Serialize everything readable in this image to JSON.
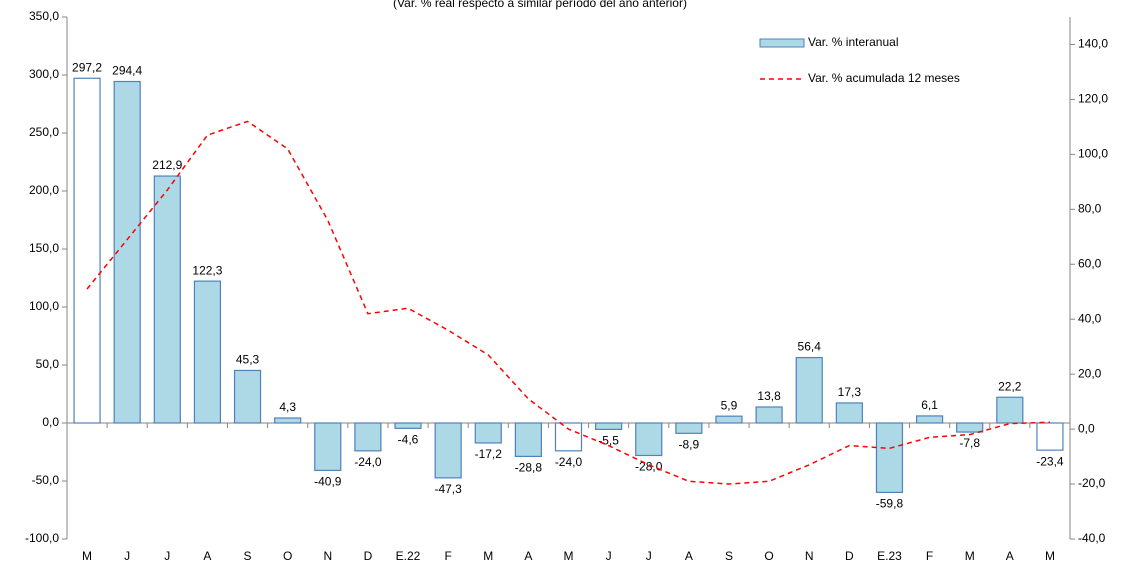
{
  "chart_data": {
    "type": "bar",
    "subtitle": "(Var. % real respecto a similar período del año anterior)",
    "categories": [
      "M",
      "J",
      "J",
      "A",
      "S",
      "O",
      "N",
      "D",
      "E.22",
      "F",
      "M",
      "A",
      "M",
      "J",
      "J",
      "A",
      "S",
      "O",
      "N",
      "D",
      "E.23",
      "F",
      "M",
      "A",
      "M"
    ],
    "series": [
      {
        "name": "Var. % interanual",
        "type": "bar",
        "color": "#add8e6",
        "edge": "#4f81bd",
        "point_colors": [
          "#ffffff",
          "#add8e6",
          "#add8e6",
          "#add8e6",
          "#add8e6",
          "#add8e6",
          "#add8e6",
          "#add8e6",
          "#add8e6",
          "#add8e6",
          "#add8e6",
          "#add8e6",
          "#ffffff",
          "#add8e6",
          "#add8e6",
          "#add8e6",
          "#add8e6",
          "#add8e6",
          "#add8e6",
          "#add8e6",
          "#add8e6",
          "#add8e6",
          "#add8e6",
          "#add8e6",
          "#ffffff"
        ],
        "values": [
          297.2,
          294.4,
          212.9,
          122.3,
          45.3,
          4.3,
          -40.9,
          -24.0,
          -4.6,
          -47.3,
          -17.2,
          -28.8,
          -24.0,
          -5.5,
          -28.0,
          -8.9,
          5.9,
          13.8,
          56.4,
          17.3,
          -59.8,
          6.1,
          -7.8,
          22.2,
          -23.4
        ],
        "value_labels": [
          "297,2",
          "294,4",
          "212,9",
          "122,3",
          "45,3",
          "4,3",
          "-40,9",
          "-24,0",
          "-4,6",
          "-47,3",
          "-17,2",
          "-28,8",
          "-24,0",
          "-5,5",
          "-28,0",
          "-8,9",
          "5,9",
          "13,8",
          "56,4",
          "17,3",
          "-59,8",
          "6,1",
          "-7,8",
          "22,2",
          "-23,4"
        ]
      },
      {
        "name": "Var. % acumulada 12 meses",
        "type": "line",
        "axis": "y2",
        "color": "#ff0000",
        "dashed": true,
        "values": [
          51,
          69,
          87,
          107,
          112,
          102,
          76,
          42,
          44,
          36,
          27,
          11,
          0,
          -6,
          -13,
          -19,
          -20,
          -19,
          -13,
          -6,
          -7,
          -3,
          -2,
          2,
          2.5
        ]
      }
    ],
    "ylim": [
      -100,
      350
    ],
    "yticks": [
      {
        "value": -100,
        "label": "-100,0"
      },
      {
        "value": -50,
        "label": "-50,0"
      },
      {
        "value": 0,
        "label": "0,0"
      },
      {
        "value": 50,
        "label": "50,0"
      },
      {
        "value": 100,
        "label": "100,0"
      },
      {
        "value": 150,
        "label": "150,0"
      },
      {
        "value": 200,
        "label": "200,0"
      },
      {
        "value": 250,
        "label": "250,0"
      },
      {
        "value": 300,
        "label": "300,0"
      },
      {
        "value": 350,
        "label": "350,0"
      }
    ],
    "y2lim": [
      -40,
      150
    ],
    "y2ticks": [
      {
        "value": -40,
        "label": "-40,0"
      },
      {
        "value": -20,
        "label": "-20,0"
      },
      {
        "value": 0,
        "label": "0,0"
      },
      {
        "value": 20,
        "label": "20,0"
      },
      {
        "value": 40,
        "label": "40,0"
      },
      {
        "value": 60,
        "label": "60,0"
      },
      {
        "value": 80,
        "label": "80,0"
      },
      {
        "value": 100,
        "label": "100,0"
      },
      {
        "value": 120,
        "label": "120,0"
      },
      {
        "value": 140,
        "label": "140,0"
      }
    ],
    "grid": false,
    "legend": "upper right"
  }
}
